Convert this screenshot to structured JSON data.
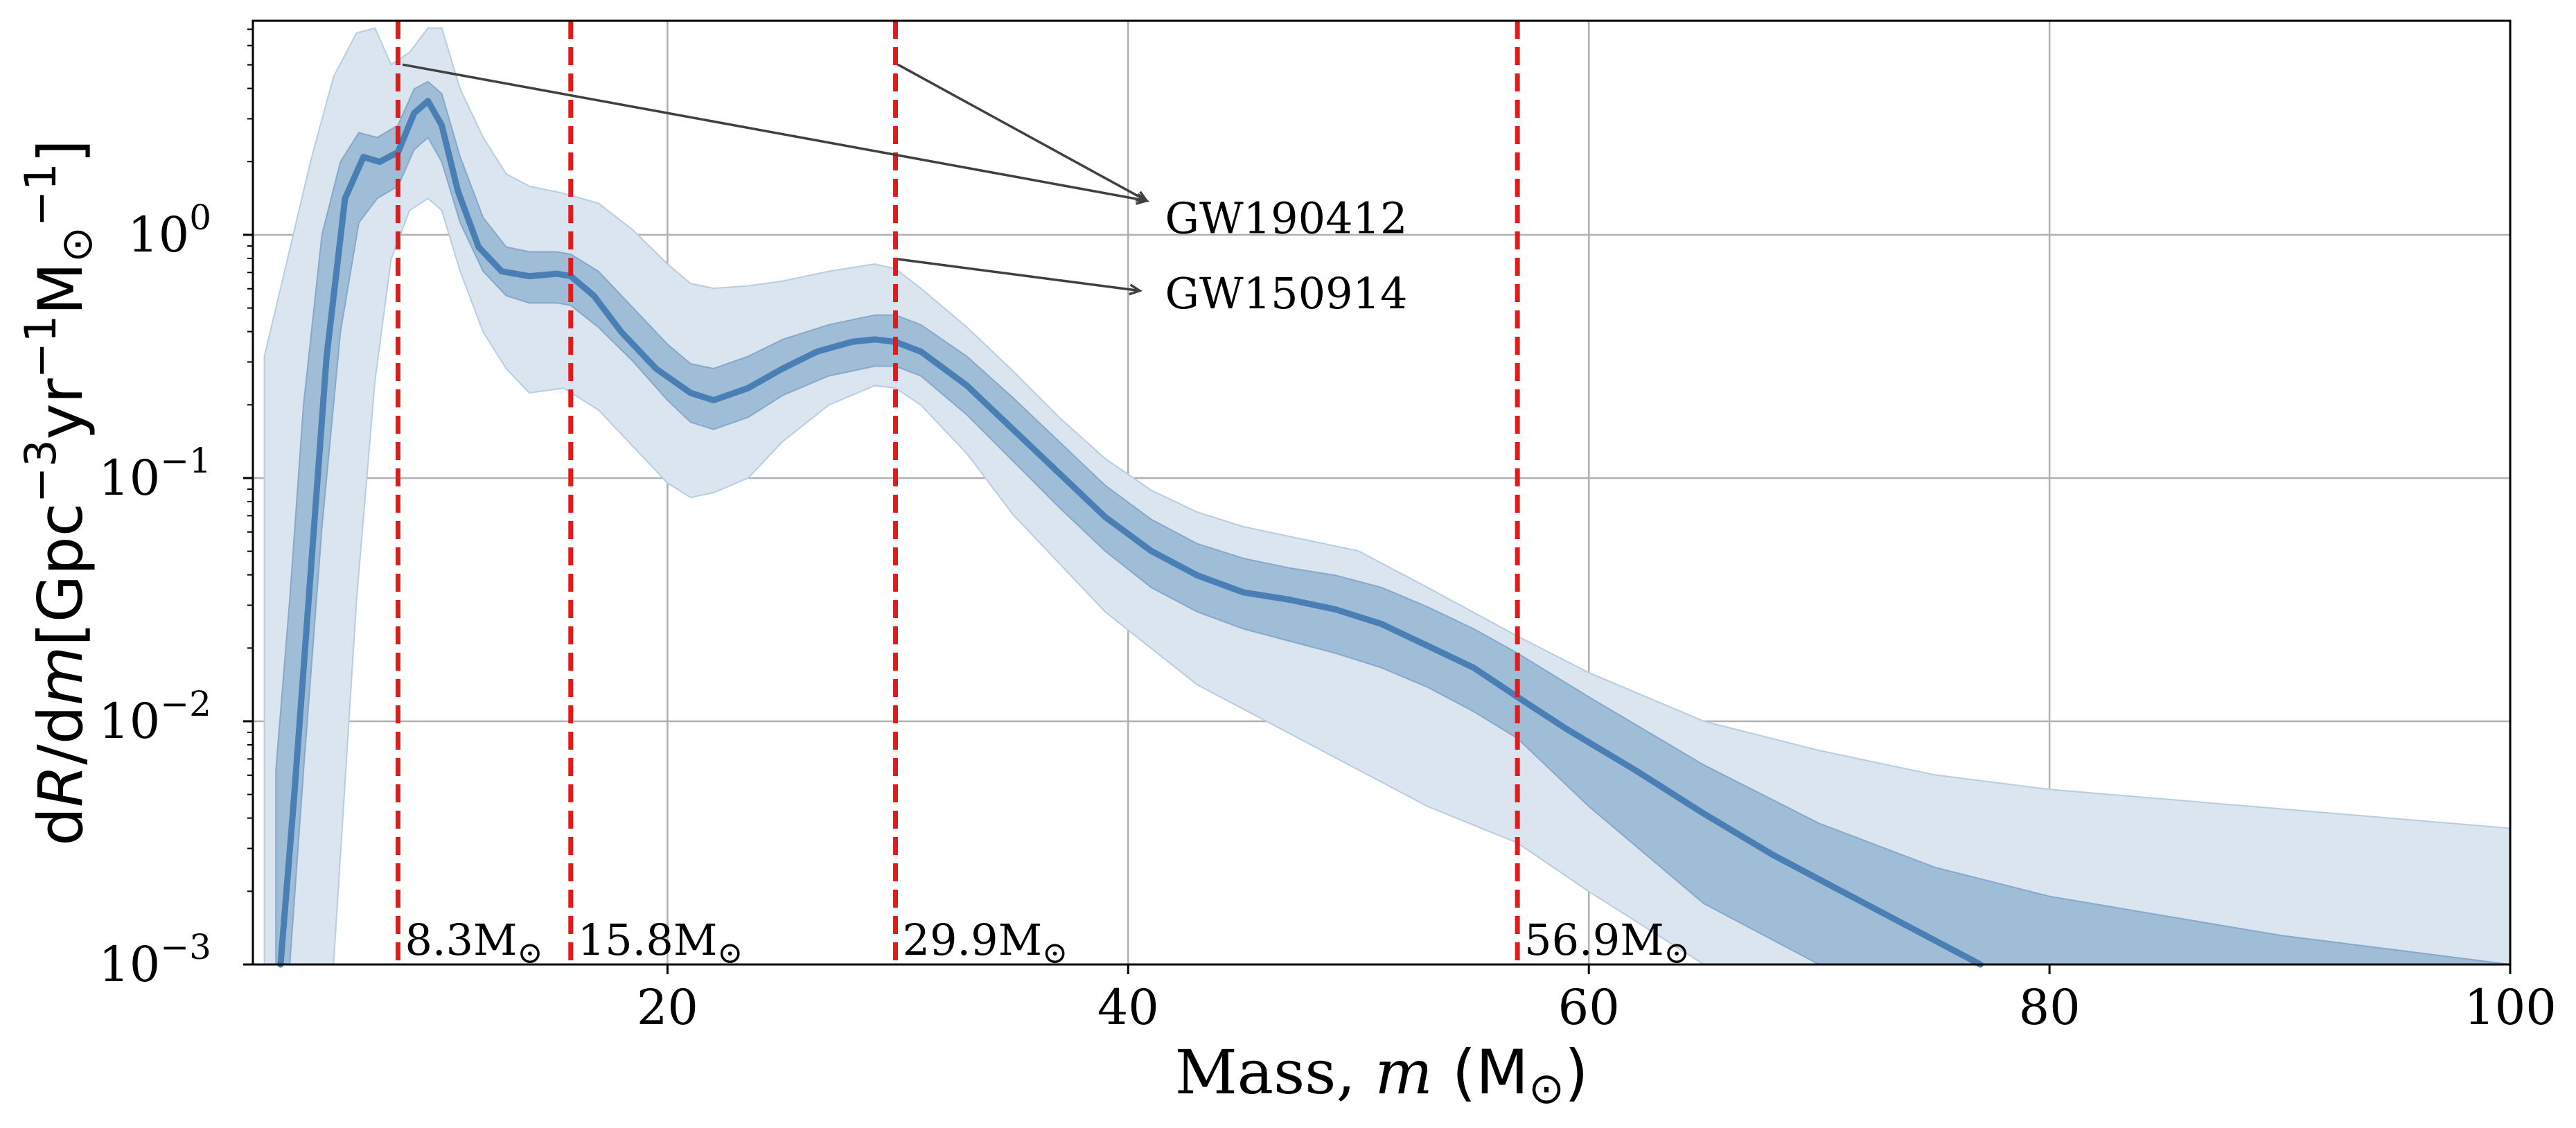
{
  "chart_data": {
    "type": "area",
    "xlabel": {
      "prefix": "Mass, ",
      "var": "m",
      "unit_open": " (M",
      "unit_sub": "⊙",
      "unit_close": ")"
    },
    "ylabel": {
      "d1": "d",
      "R": "R",
      "mid": "/d",
      "m": "m",
      "b1": "[Gpc",
      "e1": "−3",
      "b2": "yr",
      "e2": "−1",
      "b3": "M",
      "sub": "⊙",
      "e3": "−1",
      "b4": "]"
    },
    "x_range": [
      2,
      100
    ],
    "y_range_log10": [
      -3,
      0.88
    ],
    "y_scale": "log",
    "x_ticks": [
      {
        "value": 20,
        "label": "20"
      },
      {
        "value": 40,
        "label": "40"
      },
      {
        "value": 60,
        "label": "60"
      },
      {
        "value": 80,
        "label": "80"
      },
      {
        "value": 100,
        "label": "100"
      }
    ],
    "y_ticks": [
      {
        "value": -3,
        "base": "10",
        "exp": "−3"
      },
      {
        "value": -2,
        "base": "10",
        "exp": "−2"
      },
      {
        "value": -1,
        "base": "10",
        "exp": "−1"
      },
      {
        "value": 0,
        "base": "10",
        "exp": "0"
      }
    ],
    "grid": true,
    "colors": {
      "median": "#4a7fb5",
      "band_inner": "#a0bdd8",
      "band_outer": "#dae5ef",
      "vline": "#e11a1a",
      "grid": "#b0b0b0",
      "annotation": "#404040"
    },
    "series": [
      {
        "name": "median",
        "x": [
          3.2,
          3.8,
          4.5,
          5.2,
          6,
          6.8,
          7.5,
          8.3,
          9,
          9.6,
          10.2,
          10.9,
          11.8,
          12.8,
          14,
          15.2,
          15.8,
          16.8,
          18,
          19.5,
          21,
          22,
          23.5,
          25,
          26.5,
          28,
          29,
          29.9,
          31,
          33,
          35,
          37,
          39,
          41,
          43,
          45,
          47,
          49,
          51,
          53,
          55,
          56.9,
          59,
          62,
          65,
          68,
          71,
          74,
          77
        ],
        "y": [
          -3.0,
          -2.3,
          -1.4,
          -0.5,
          0.15,
          0.32,
          0.3,
          0.34,
          0.5,
          0.55,
          0.45,
          0.18,
          -0.05,
          -0.15,
          -0.17,
          -0.16,
          -0.17,
          -0.25,
          -0.4,
          -0.55,
          -0.65,
          -0.68,
          -0.63,
          -0.55,
          -0.48,
          -0.44,
          -0.43,
          -0.44,
          -0.48,
          -0.62,
          -0.8,
          -0.98,
          -1.16,
          -1.3,
          -1.4,
          -1.47,
          -1.5,
          -1.54,
          -1.6,
          -1.69,
          -1.78,
          -1.9,
          -2.03,
          -2.2,
          -2.38,
          -2.55,
          -2.7,
          -2.85,
          -3.0
        ]
      },
      {
        "name": "90% band",
        "x": [
          2.5,
          3.5,
          4.5,
          5.5,
          6.5,
          7.3,
          8,
          8.8,
          9.6,
          10.2,
          11,
          12,
          13,
          14,
          15.5,
          17,
          18.5,
          20,
          21,
          22,
          23.5,
          25,
          27,
          29,
          29.9,
          31,
          33,
          35,
          37,
          39,
          41,
          43,
          45,
          47,
          50,
          53,
          56.9,
          60,
          65,
          70,
          75,
          80,
          85,
          90,
          95,
          100
        ],
        "lower": [
          -3.0,
          -3.0,
          -3.0,
          -3.0,
          -1.5,
          -0.6,
          -0.1,
          0.1,
          0.15,
          0.1,
          -0.15,
          -0.4,
          -0.55,
          -0.65,
          -0.63,
          -0.72,
          -0.87,
          -1.02,
          -1.08,
          -1.06,
          -1.0,
          -0.85,
          -0.7,
          -0.62,
          -0.63,
          -0.7,
          -0.9,
          -1.15,
          -1.35,
          -1.55,
          -1.7,
          -1.85,
          -1.95,
          -2.05,
          -2.2,
          -2.35,
          -2.5,
          -2.7,
          -3.0,
          -3.0,
          -3.0,
          -3.0,
          -3.0,
          -3.0,
          -3.0,
          -3.0
        ],
        "upper": [
          -0.5,
          -0.1,
          0.3,
          0.65,
          0.83,
          0.85,
          0.7,
          0.75,
          0.85,
          0.85,
          0.6,
          0.4,
          0.25,
          0.2,
          0.17,
          0.13,
          0.02,
          -0.12,
          -0.2,
          -0.22,
          -0.21,
          -0.19,
          -0.15,
          -0.12,
          -0.14,
          -0.22,
          -0.38,
          -0.56,
          -0.75,
          -0.92,
          -1.05,
          -1.14,
          -1.2,
          -1.24,
          -1.3,
          -1.45,
          -1.65,
          -1.8,
          -2.0,
          -2.12,
          -2.22,
          -2.28,
          -2.32,
          -2.36,
          -2.4,
          -2.44
        ]
      },
      {
        "name": "50% band",
        "x": [
          3.0,
          3.6,
          4.2,
          5,
          5.8,
          6.6,
          7.4,
          8.3,
          9,
          9.6,
          10.2,
          11,
          12,
          13,
          14,
          15.2,
          15.8,
          17,
          18.5,
          20,
          21,
          22,
          23.5,
          25,
          27,
          29,
          29.9,
          31,
          33,
          35,
          37,
          39,
          41,
          43,
          45,
          47,
          49,
          51,
          53,
          55,
          56.9,
          60,
          65,
          70,
          75,
          80,
          85,
          90,
          95,
          100
        ],
        "lower": [
          -3.0,
          -3.0,
          -2.2,
          -1.2,
          -0.4,
          0.05,
          0.15,
          0.2,
          0.35,
          0.4,
          0.3,
          0.05,
          -0.15,
          -0.25,
          -0.28,
          -0.28,
          -0.29,
          -0.38,
          -0.52,
          -0.68,
          -0.77,
          -0.8,
          -0.75,
          -0.66,
          -0.58,
          -0.54,
          -0.54,
          -0.58,
          -0.74,
          -0.93,
          -1.12,
          -1.3,
          -1.45,
          -1.55,
          -1.62,
          -1.67,
          -1.72,
          -1.78,
          -1.86,
          -1.96,
          -2.07,
          -2.35,
          -2.75,
          -3.0,
          -3.0,
          -3.0,
          -3.0,
          -3.0,
          -3.0,
          -3.0
        ],
        "upper": [
          -2.2,
          -1.5,
          -0.7,
          0.0,
          0.3,
          0.42,
          0.4,
          0.45,
          0.6,
          0.63,
          0.58,
          0.32,
          0.07,
          -0.05,
          -0.07,
          -0.07,
          -0.08,
          -0.15,
          -0.3,
          -0.45,
          -0.53,
          -0.55,
          -0.5,
          -0.43,
          -0.37,
          -0.33,
          -0.33,
          -0.37,
          -0.5,
          -0.67,
          -0.85,
          -1.03,
          -1.17,
          -1.27,
          -1.33,
          -1.37,
          -1.4,
          -1.45,
          -1.53,
          -1.62,
          -1.72,
          -1.9,
          -2.18,
          -2.42,
          -2.6,
          -2.72,
          -2.8,
          -2.88,
          -2.94,
          -3.0
        ]
      }
    ],
    "vlines": [
      {
        "x": 8.3,
        "label": "8.3M",
        "sub": "⊙"
      },
      {
        "x": 15.8,
        "label": "15.8M",
        "sub": "⊙"
      },
      {
        "x": 29.9,
        "label": "29.9M",
        "sub": "⊙"
      },
      {
        "x": 56.9,
        "label": "56.9M",
        "sub": "⊙"
      }
    ],
    "annotations": [
      {
        "text": "GW190412",
        "text_x": 41.6,
        "text_y": 0.07,
        "arrows": [
          {
            "from": [
              8.5,
              0.7
            ],
            "to": [
              40.8,
              0.14
            ]
          },
          {
            "from": [
              30.0,
              0.7
            ],
            "to": [
              40.8,
              0.14
            ]
          }
        ]
      },
      {
        "text": "GW150914",
        "text_x": 41.6,
        "text_y": -0.24,
        "arrows": [
          {
            "from": [
              30.0,
              -0.1
            ],
            "to": [
              40.5,
              -0.23
            ]
          }
        ]
      }
    ]
  }
}
